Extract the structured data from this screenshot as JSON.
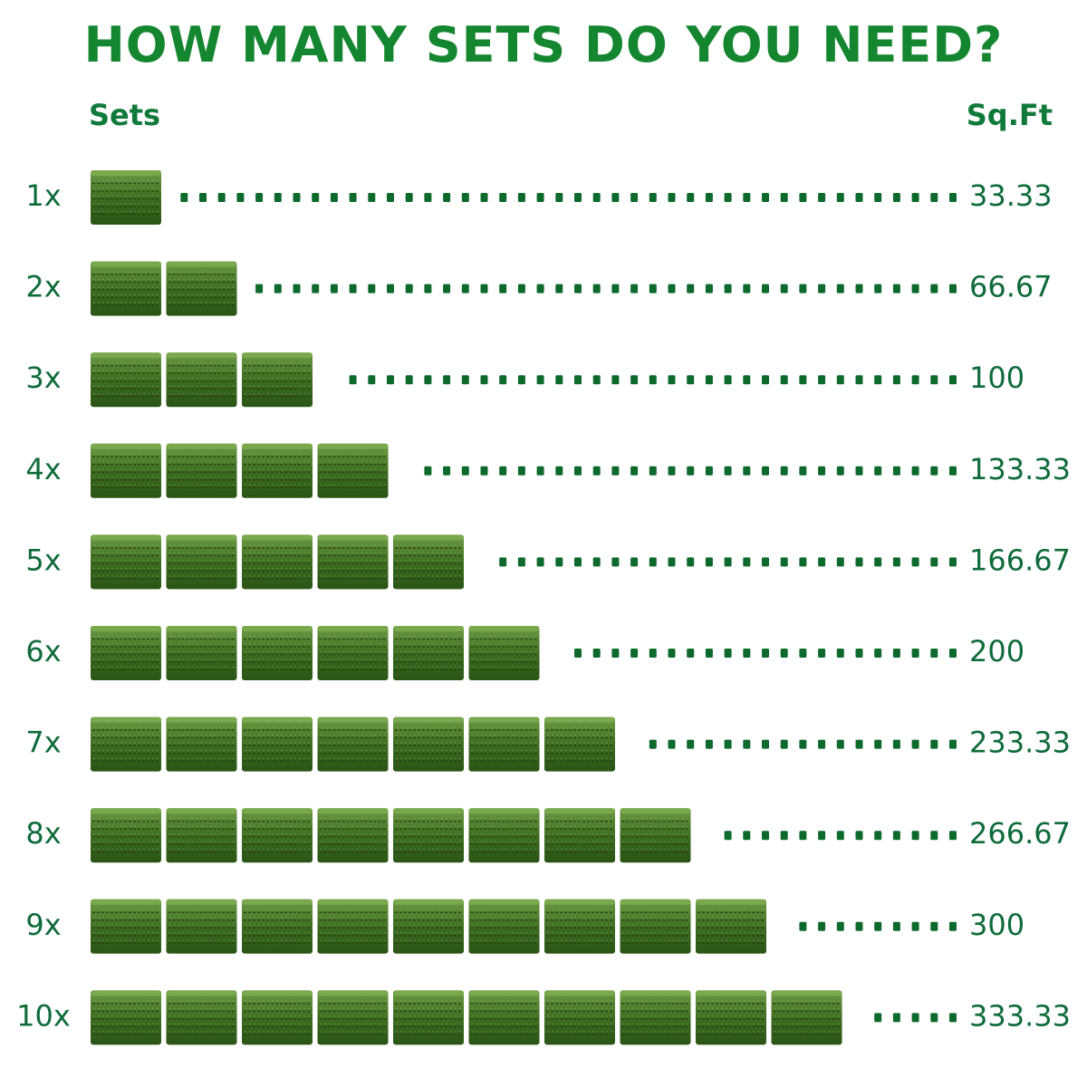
{
  "title": "HOW MANY SETS DO YOU NEED?",
  "headers": {
    "left": "Sets",
    "right": "Sq.Ft"
  },
  "colors": {
    "title": "#13862f",
    "text": "#0f6b3a",
    "dots": "#0d6a2c",
    "turf_dark": "#2f5f1a",
    "turf_light": "#5f8f3a"
  },
  "chart_data": {
    "type": "table",
    "rows": [
      {
        "sets_label": "1x",
        "sets": 1,
        "sqft_label": "33.33",
        "sqft": 33.33
      },
      {
        "sets_label": "2x",
        "sets": 2,
        "sqft_label": "66.67",
        "sqft": 66.67
      },
      {
        "sets_label": "3x",
        "sets": 3,
        "sqft_label": "100",
        "sqft": 100
      },
      {
        "sets_label": "4x",
        "sets": 4,
        "sqft_label": "133.33",
        "sqft": 133.33
      },
      {
        "sets_label": "5x",
        "sets": 5,
        "sqft_label": "166.67",
        "sqft": 166.67
      },
      {
        "sets_label": "6x",
        "sets": 6,
        "sqft_label": "200",
        "sqft": 200
      },
      {
        "sets_label": "7x",
        "sets": 7,
        "sqft_label": "233.33",
        "sqft": 233.33
      },
      {
        "sets_label": "8x",
        "sets": 8,
        "sqft_label": "266.67",
        "sqft": 266.67
      },
      {
        "sets_label": "9x",
        "sets": 9,
        "sqft_label": "300",
        "sqft": 300
      },
      {
        "sets_label": "10x",
        "sets": 10,
        "sqft_label": "333.33",
        "sqft": 333.33
      }
    ]
  }
}
